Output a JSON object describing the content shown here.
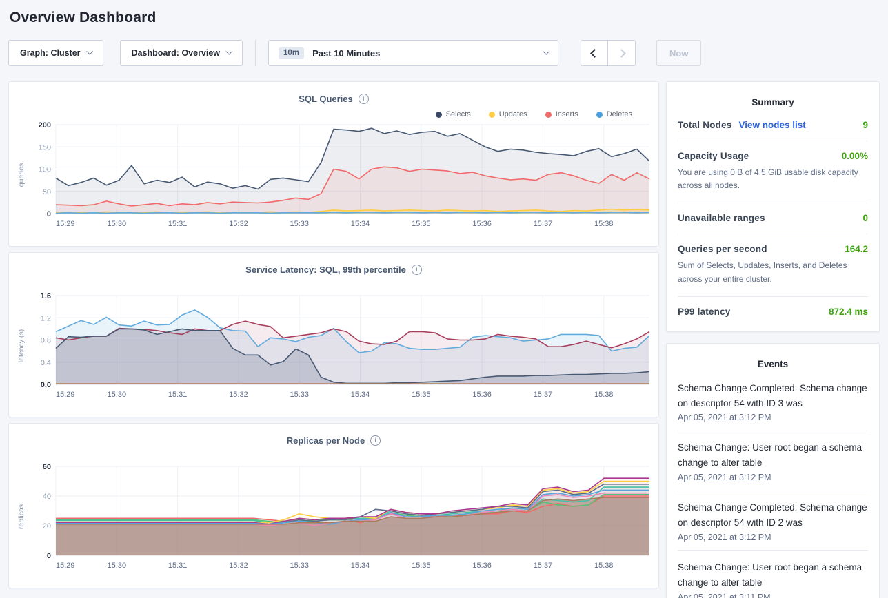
{
  "page": {
    "title": "Overview Dashboard"
  },
  "toolbar": {
    "graph_dropdown": {
      "label": "Graph: Cluster"
    },
    "dashboard_dropdown": {
      "label": "Dashboard: Overview"
    },
    "time_picker": {
      "badge": "10m",
      "label": "Past 10 Minutes"
    },
    "prev_button": "chevron-left-icon",
    "next_button": "chevron-right-icon",
    "now_button": {
      "label": "Now"
    }
  },
  "colors": {
    "value_green": "#3da30c",
    "link_blue": "#2962e0",
    "selects_navy": "#475872",
    "updates_yellow": "#FFCD44",
    "inserts_red": "#F16969",
    "deletes_blue": "#62ABDC"
  },
  "summary": {
    "title": "Summary",
    "rows": [
      {
        "label": "Total Nodes",
        "link": "View nodes list",
        "value": "9"
      },
      {
        "label": "Capacity Usage",
        "value": "0.00%",
        "subtext": "You are using 0 B of 4.5 GiB usable disk capacity across all nodes."
      },
      {
        "label": "Unavailable ranges",
        "value": "0"
      },
      {
        "label": "Queries per second",
        "value": "164.2",
        "subtext": "Sum of Selects, Updates, Inserts, and Deletes across your entire cluster."
      },
      {
        "label": "P99 latency",
        "value": "872.4 ms"
      }
    ]
  },
  "events": {
    "title": "Events",
    "items": [
      {
        "text": "Schema Change Completed: Schema change on descriptor 54 with ID 3 was",
        "time": "Apr 05, 2021 at 3:12 PM"
      },
      {
        "text": "Schema Change: User root began a schema change to alter table",
        "time": "Apr 05, 2021 at 3:12 PM"
      },
      {
        "text": "Schema Change Completed: Schema change on descriptor 54 with ID 2 was",
        "time": "Apr 05, 2021 at 3:12 PM"
      },
      {
        "text": "Schema Change: User root began a schema change to alter table",
        "time": "Apr 05, 2021 at 3:11 PM"
      }
    ]
  },
  "time_axis": {
    "total_minutes": 9.75,
    "ticks": [
      {
        "m": 0,
        "label": "15:29"
      },
      {
        "m": 1,
        "label": "15:30"
      },
      {
        "m": 2,
        "label": "15:31"
      },
      {
        "m": 3,
        "label": "15:32"
      },
      {
        "m": 4,
        "label": "15:33"
      },
      {
        "m": 5,
        "label": "15:34"
      },
      {
        "m": 6,
        "label": "15:35"
      },
      {
        "m": 7,
        "label": "15:36"
      },
      {
        "m": 8,
        "label": "15:37"
      },
      {
        "m": 9,
        "label": "15:38"
      }
    ]
  },
  "chart_data": [
    {
      "type": "area",
      "title": "SQL Queries",
      "ylabel": "queries",
      "ylim": [
        0,
        200
      ],
      "grid": true,
      "legend_position": "top-right",
      "yticks": [
        {
          "v": 0,
          "label": "0"
        },
        {
          "v": 50,
          "label": "50"
        },
        {
          "v": 100,
          "label": "100"
        },
        {
          "v": 150,
          "label": "150"
        },
        {
          "v": 200,
          "label": "200"
        }
      ],
      "legend": [
        {
          "label": "Selects",
          "color": "#3b4a66"
        },
        {
          "label": "Updates",
          "color": "#FFCD44"
        },
        {
          "label": "Inserts",
          "color": "#F16969"
        },
        {
          "label": "Deletes",
          "color": "#4aa0dc"
        }
      ],
      "series": [
        {
          "name": "Selects",
          "color": "#475872",
          "fill": "rgba(71,88,114,0.10)",
          "values": [
            80,
            63,
            70,
            80,
            64,
            75,
            108,
            67,
            75,
            70,
            82,
            60,
            71,
            67,
            57,
            63,
            55,
            77,
            80,
            76,
            72,
            115,
            190,
            188,
            185,
            192,
            180,
            186,
            178,
            183,
            185,
            174,
            180,
            165,
            150,
            140,
            145,
            143,
            138,
            135,
            133,
            130,
            140,
            146,
            128,
            135,
            145,
            118
          ]
        },
        {
          "name": "Inserts",
          "color": "#F16969",
          "fill": "rgba(241,105,105,0.10)",
          "values": [
            20,
            19,
            18,
            20,
            28,
            22,
            17,
            20,
            23,
            18,
            22,
            20,
            25,
            22,
            26,
            25,
            24,
            26,
            30,
            35,
            32,
            45,
            100,
            95,
            78,
            100,
            105,
            103,
            95,
            100,
            98,
            96,
            90,
            93,
            85,
            80,
            76,
            78,
            75,
            88,
            92,
            85,
            75,
            68,
            88,
            75,
            92,
            78
          ]
        },
        {
          "name": "Updates",
          "color": "#FFCD44",
          "fill": "rgba(255,205,68,0.30)",
          "values": [
            2,
            3,
            3,
            2,
            4,
            3,
            2,
            3,
            4,
            2,
            3,
            3,
            4,
            3,
            2,
            3,
            3,
            4,
            3,
            4,
            3,
            5,
            8,
            6,
            7,
            8,
            6,
            7,
            8,
            7,
            6,
            8,
            7,
            6,
            7,
            5,
            6,
            7,
            8,
            6,
            5,
            7,
            6,
            8,
            10,
            8,
            9,
            8
          ]
        },
        {
          "name": "Deletes",
          "color": "#62ABDC",
          "fill": "rgba(98,171,220,0.35)",
          "values": [
            1,
            2,
            1,
            2,
            1,
            2,
            2,
            1,
            2,
            2,
            1,
            2,
            2,
            1,
            2,
            2,
            2,
            1,
            2,
            2,
            2,
            2,
            3,
            2,
            3,
            3,
            2,
            3,
            3,
            2,
            3,
            2,
            3,
            3,
            2,
            3,
            2,
            3,
            3,
            2,
            3,
            2,
            3,
            2,
            3,
            3,
            2,
            3
          ]
        }
      ]
    },
    {
      "type": "area",
      "title": "Service Latency: SQL, 99th percentile",
      "ylabel": "latency (s)",
      "ylim": [
        0,
        1.6
      ],
      "grid": true,
      "yticks": [
        {
          "v": 0,
          "label": "0.0"
        },
        {
          "v": 0.4,
          "label": "0.4"
        },
        {
          "v": 0.8,
          "label": "0.8"
        },
        {
          "v": 1.2,
          "label": "1.2"
        },
        {
          "v": 1.6,
          "label": "1.6"
        }
      ],
      "series": [
        {
          "color": "#62ABDC",
          "fill": "rgba(98,171,220,0.14)",
          "values": [
            0.95,
            1.05,
            1.15,
            1.08,
            1.21,
            1.07,
            1.05,
            1.14,
            1.07,
            1.08,
            1.25,
            1.34,
            1.21,
            1.02,
            0.97,
            0.96,
            0.68,
            0.84,
            0.82,
            0.77,
            0.85,
            0.88,
            1.01,
            0.77,
            0.57,
            0.6,
            0.75,
            0.73,
            0.65,
            0.63,
            0.63,
            0.65,
            0.67,
            0.85,
            0.88,
            0.86,
            0.84,
            0.78,
            0.8,
            0.82,
            0.9,
            0.9,
            0.9,
            0.88,
            0.6,
            0.65,
            0.67,
            0.88
          ]
        },
        {
          "color": "#A73E5C",
          "fill": "rgba(167,62,92,0.10)",
          "values": [
            0.84,
            0.8,
            0.84,
            0.87,
            0.87,
            1.01,
            1.0,
            0.99,
            0.97,
            0.93,
            0.9,
            1.0,
            0.97,
            0.97,
            1.08,
            1.14,
            1.08,
            1.04,
            0.84,
            0.87,
            0.9,
            0.93,
            1.0,
            0.95,
            0.78,
            0.73,
            0.72,
            0.78,
            0.95,
            0.95,
            0.93,
            0.82,
            0.8,
            0.8,
            0.82,
            0.9,
            0.87,
            0.85,
            0.82,
            0.68,
            0.68,
            0.72,
            0.78,
            0.72,
            0.66,
            0.73,
            0.82,
            0.95
          ]
        },
        {
          "color": "#475872",
          "fill": "rgba(71,88,114,0.20)",
          "values": [
            0.65,
            0.86,
            0.85,
            0.87,
            0.87,
            1.0,
            1.0,
            0.98,
            0.9,
            0.95,
            1.0,
            0.97,
            0.97,
            0.97,
            0.65,
            0.53,
            0.53,
            0.35,
            0.41,
            0.64,
            0.53,
            0.13,
            0.04,
            0.02,
            0.02,
            0.02,
            0.02,
            0.03,
            0.03,
            0.04,
            0.05,
            0.06,
            0.07,
            0.1,
            0.13,
            0.15,
            0.15,
            0.15,
            0.16,
            0.16,
            0.17,
            0.18,
            0.18,
            0.19,
            0.2,
            0.2,
            0.21,
            0.23
          ]
        },
        {
          "color": "#BA8455",
          "fill": "none",
          "values": [
            0.012,
            0.012
          ]
        }
      ]
    },
    {
      "type": "area",
      "title": "Replicas per Node",
      "ylabel": "replicas",
      "ylim": [
        0,
        60
      ],
      "grid": true,
      "yticks": [
        {
          "v": 0,
          "label": "0"
        },
        {
          "v": 20,
          "label": "20"
        },
        {
          "v": 40,
          "label": "40"
        },
        {
          "v": 60,
          "label": "60"
        }
      ],
      "series": [
        {
          "color": "#F16969",
          "fill": "rgba(241,105,105,0.05)",
          "values": [
            25,
            25,
            25,
            25,
            25,
            25,
            25,
            25,
            25,
            25,
            25,
            25,
            25,
            25,
            24,
            23,
            24,
            23,
            24,
            25,
            22,
            25,
            28,
            27,
            26,
            26,
            27,
            27,
            28,
            28,
            30,
            29,
            33,
            35,
            33,
            34,
            40,
            40,
            40,
            40
          ]
        },
        {
          "color": "#55C174",
          "fill": "rgba(85,193,116,0.05)",
          "values": [
            24,
            24,
            24,
            24,
            24,
            24,
            24,
            24,
            24,
            24,
            24,
            24,
            24,
            24,
            23,
            22,
            23,
            24,
            24,
            24,
            25,
            24,
            29,
            27,
            26,
            27,
            27,
            28,
            29,
            29,
            31,
            30,
            36,
            34,
            33,
            34,
            41,
            41,
            41,
            41
          ]
        },
        {
          "color": "#46BFA7",
          "fill": "rgba(70,191,167,0.05)",
          "values": [
            23.5,
            23.5,
            23.5,
            23.5,
            23.5,
            23.5,
            23.5,
            23.5,
            23.5,
            23.5,
            23.5,
            23.5,
            23.5,
            23.5,
            22,
            23,
            23,
            23,
            24,
            24,
            25,
            25,
            30,
            28,
            27,
            27,
            28,
            29,
            30,
            30,
            32,
            31,
            38,
            37,
            36,
            37,
            46,
            46,
            46,
            46
          ]
        },
        {
          "color": "#FFCD44",
          "fill": "rgba(255,205,68,0.05)",
          "values": [
            22.5,
            22.5,
            22.5,
            22.5,
            22.5,
            22.5,
            22.5,
            22.5,
            22.5,
            22.5,
            22.5,
            22.5,
            22.5,
            22.5,
            22,
            24,
            28,
            26,
            25,
            25,
            26,
            25,
            31,
            29,
            28,
            28,
            29,
            30,
            31,
            32,
            34,
            33,
            44,
            45,
            42,
            43,
            50,
            50,
            50,
            50
          ]
        },
        {
          "color": "#5F6C87",
          "fill": "rgba(95,108,135,0.05)",
          "values": [
            22,
            22,
            22,
            22,
            22,
            22,
            22,
            22,
            22,
            22,
            22,
            22,
            22,
            22,
            21,
            22,
            24,
            23,
            24,
            24,
            26,
            31,
            30,
            28,
            27,
            28,
            29,
            30,
            31,
            33,
            33,
            32,
            43,
            44,
            41,
            42,
            48,
            48,
            48,
            48
          ]
        },
        {
          "color": "#A9378F",
          "fill": "rgba(169,55,143,0.05)",
          "values": [
            22,
            22,
            22,
            22,
            22,
            22,
            22,
            22,
            22,
            22,
            22,
            22,
            22,
            22,
            21,
            23,
            25,
            24,
            25,
            25,
            26,
            26,
            31,
            29,
            28,
            28,
            30,
            31,
            32,
            33,
            35,
            34,
            45,
            46,
            43,
            44,
            52,
            52,
            52,
            52
          ]
        },
        {
          "color": "#5CA1DB",
          "fill": "rgba(92,161,219,0.05)",
          "values": [
            21.5,
            21.5,
            21.5,
            21.5,
            21.5,
            21.5,
            21.5,
            21.5,
            21.5,
            21.5,
            21.5,
            21.5,
            21.5,
            21.5,
            21,
            22,
            23,
            22,
            21,
            23,
            24,
            24,
            29,
            26,
            26,
            27,
            27,
            28,
            30,
            31,
            32,
            31,
            41,
            42,
            40,
            41,
            44,
            44,
            44,
            44
          ]
        },
        {
          "color": "#EF86B8",
          "fill": "rgba(239,134,184,0.05)",
          "values": [
            21,
            21,
            21,
            21,
            21,
            21,
            21,
            21,
            21,
            21,
            21,
            21,
            21,
            21,
            20,
            21,
            22,
            20,
            22,
            23,
            23,
            24,
            28,
            25,
            25,
            26,
            26,
            27,
            29,
            30,
            31,
            30,
            40,
            41,
            39,
            40,
            42,
            42,
            42,
            42
          ]
        },
        {
          "color": "#A97C5C",
          "fill": "rgba(138,90,68,0.42)",
          "values": [
            21,
            21,
            21,
            21,
            21,
            21,
            21,
            21,
            21,
            21,
            21,
            21,
            21,
            21,
            21,
            21,
            22,
            22,
            22,
            23,
            23,
            23,
            26,
            25,
            25,
            26,
            26,
            27,
            28,
            29,
            30,
            30,
            37,
            38,
            37,
            38,
            39,
            39,
            39,
            39
          ]
        }
      ]
    }
  ]
}
